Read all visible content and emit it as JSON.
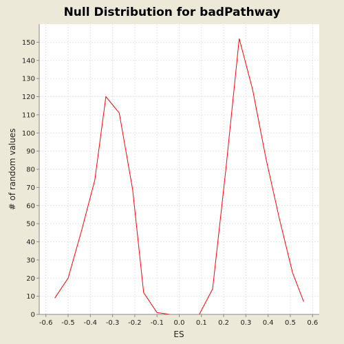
{
  "chart_data": {
    "type": "line",
    "title": "Null Distribution for badPathway",
    "xlabel": "ES",
    "ylabel": "# of random values",
    "xlim": [
      -0.63,
      0.63
    ],
    "ylim": [
      0,
      160
    ],
    "xticks": [
      -0.6,
      -0.5,
      -0.4,
      -0.3,
      -0.2,
      -0.1,
      0.0,
      0.1,
      0.2,
      0.3,
      0.4,
      0.5,
      0.6
    ],
    "xtick_labels": [
      "-0.6",
      "-0.5",
      "-0.4",
      "-0.3",
      "-0.2",
      "-0.1",
      "0.0",
      "0.1",
      "0.2",
      "0.3",
      "0.4",
      "0.5",
      "0.6"
    ],
    "yticks": [
      0,
      10,
      20,
      30,
      40,
      50,
      60,
      70,
      80,
      90,
      100,
      110,
      120,
      130,
      140,
      150
    ],
    "ytick_labels": [
      "0",
      "10",
      "20",
      "30",
      "40",
      "50",
      "60",
      "70",
      "80",
      "90",
      "100",
      "110",
      "120",
      "130",
      "140",
      "150"
    ],
    "grid": true,
    "line_color": "#ff0000",
    "plot_background": "#ffffff",
    "page_background": "#ece9d8",
    "series": [
      {
        "x": [
          -0.56,
          -0.5,
          -0.44,
          -0.38,
          -0.33,
          -0.27,
          -0.21,
          -0.16,
          -0.1,
          -0.04,
          0.02,
          0.09,
          0.15,
          0.21,
          0.27,
          0.33,
          0.39,
          0.45,
          0.51,
          0.56
        ],
        "y": [
          9,
          20,
          46,
          74,
          120,
          111,
          69,
          12,
          1,
          0,
          0,
          0,
          14,
          80,
          152,
          124,
          86,
          53,
          23,
          7
        ]
      }
    ]
  }
}
